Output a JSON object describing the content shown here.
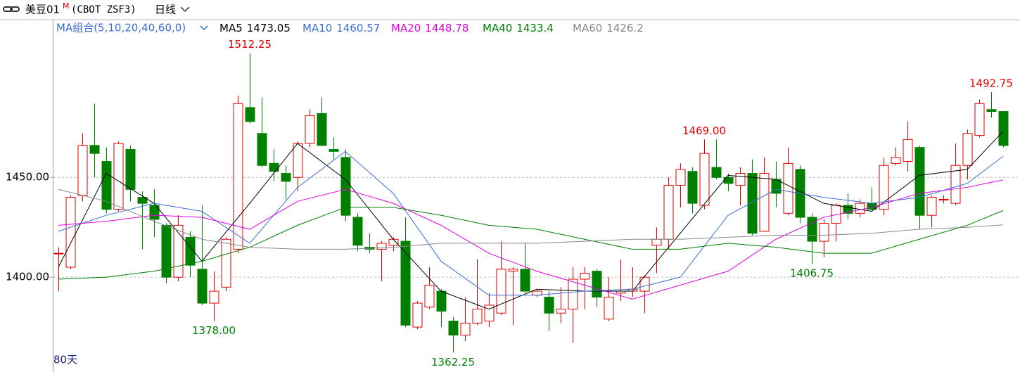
{
  "chart_data": {
    "type": "candlestick",
    "symbol": "美豆01",
    "symbol_flag": "M",
    "code": "(CBOT ZSF3)",
    "period": "日线",
    "ma_group": "MA组合(5,10,20,40,60,0)",
    "footer": "80天",
    "up_color": "#e00000",
    "down_color": "#008000",
    "ylim": [
      1352.5,
      1529
    ],
    "yticks": [
      {
        "value": 1400,
        "label": "1400.00"
      },
      {
        "value": 1450,
        "label": "1450.00"
      }
    ],
    "grid": true,
    "candles": {
      "open": [
        1412,
        1405,
        1441,
        1466,
        1458,
        1434,
        1464,
        1440,
        1436,
        1426,
        1400,
        1420,
        1404,
        1387,
        1395,
        1414,
        1485,
        1472,
        1457,
        1452,
        1450,
        1467,
        1482,
        1464,
        1460,
        1430,
        1415,
        1414,
        1416,
        1418,
        1375,
        1385,
        1393,
        1378,
        1371,
        1377,
        1378,
        1382,
        1403,
        1404,
        1391,
        1390,
        1382,
        1384,
        1399,
        1403,
        1379,
        1392,
        1393,
        1393,
        1416,
        1419,
        1446,
        1453,
        1436,
        1455,
        1450,
        1446,
        1452,
        1423,
        1449,
        1432,
        1454,
        1430,
        1418,
        1427,
        1436,
        1432,
        1437,
        1434,
        1457,
        1458,
        1465,
        1431,
        1439,
        1437,
        1456,
        1471,
        1484,
        1483
      ],
      "high": [
        1415,
        1441,
        1472,
        1487,
        1465,
        1468,
        1466,
        1443,
        1444,
        1427,
        1431,
        1423,
        1436,
        1403,
        1420,
        1491,
        1512.25,
        1490,
        1464,
        1456,
        1468,
        1484,
        1490,
        1470,
        1464,
        1432,
        1422,
        1418,
        1420,
        1430,
        1388,
        1405,
        1394,
        1380,
        1390,
        1409,
        1392,
        1418,
        1405,
        1417,
        1394,
        1393,
        1395,
        1405,
        1405,
        1404,
        1400,
        1409,
        1405,
        1401,
        1425,
        1450,
        1457,
        1455,
        1469,
        1469,
        1452,
        1455,
        1459,
        1460,
        1458,
        1465,
        1456,
        1432,
        1429,
        1437,
        1442,
        1439,
        1445,
        1460,
        1465,
        1478,
        1466,
        1441,
        1441,
        1467,
        1474,
        1489,
        1492.75,
        1483
      ],
      "low": [
        1393,
        1404,
        1438,
        1450,
        1432,
        1433,
        1438,
        1414,
        1420,
        1397,
        1398,
        1400,
        1386,
        1378,
        1393,
        1412,
        1477,
        1455,
        1448,
        1439,
        1443,
        1465,
        1466,
        1459,
        1428,
        1413,
        1412,
        1398,
        1413,
        1375,
        1374,
        1384,
        1375,
        1362.25,
        1368,
        1376,
        1375,
        1381,
        1376,
        1392,
        1390,
        1373,
        1377,
        1367,
        1384,
        1385,
        1378,
        1388,
        1390,
        1382,
        1402,
        1414,
        1435,
        1432,
        1434,
        1449,
        1443,
        1436,
        1421,
        1423,
        1435,
        1431,
        1427,
        1406.75,
        1410,
        1418,
        1429,
        1430,
        1433,
        1431,
        1456,
        1453,
        1424,
        1425,
        1437,
        1436,
        1449,
        1470,
        1480,
        1465
      ],
      "close": [
        1412,
        1440,
        1466,
        1462,
        1434,
        1467,
        1444,
        1437,
        1429,
        1400,
        1426,
        1406,
        1387,
        1393,
        1419,
        1487,
        1478,
        1456,
        1453,
        1448,
        1467,
        1481,
        1466,
        1463,
        1431,
        1416,
        1414,
        1417,
        1419,
        1376,
        1387,
        1396,
        1383,
        1371,
        1377,
        1384,
        1386,
        1404,
        1404,
        1393,
        1393,
        1382,
        1384,
        1399,
        1402,
        1390,
        1390,
        1393,
        1394,
        1400,
        1419,
        1446,
        1454,
        1437,
        1462,
        1450,
        1447,
        1452,
        1422,
        1452,
        1442,
        1457,
        1430,
        1418,
        1427,
        1436,
        1432,
        1437,
        1434,
        1456,
        1460,
        1469,
        1431,
        1440,
        1439,
        1456,
        1472,
        1487,
        1483,
        1466
      ]
    },
    "annotations": [
      1512.25,
      {
        "value": 1378,
        "label": "1378.00"
      },
      1362.25,
      {
        "value": 1469,
        "label": "1469.00"
      },
      1406.75,
      1492.75
    ],
    "ma_x": [
      0,
      4,
      8,
      12,
      16,
      20,
      24,
      28,
      32,
      36,
      40,
      44,
      48,
      52,
      56,
      60,
      64,
      68,
      72,
      76,
      79
    ],
    "ma": [
      {
        "name": "MA5",
        "color": "#000000",
        "last": 1473.05,
        "values": [
          1405,
          1452,
          1437,
          1408,
          1437,
          1467,
          1449,
          1419,
          1393,
          1384,
          1394,
          1393,
          1393,
          1422,
          1451,
          1449,
          1437,
          1433,
          1451,
          1454,
          1473.05
        ]
      },
      {
        "name": "MA10",
        "color": "#3a6fd8",
        "last": 1460.57,
        "values": [
          1423,
          1431,
          1437,
          1433,
          1417,
          1445,
          1463,
          1442,
          1408,
          1391,
          1391,
          1393,
          1394,
          1400,
          1431,
          1444,
          1440,
          1437,
          1440,
          1447,
          1460.57
        ]
      },
      {
        "name": "MA20",
        "color": "#e000e0",
        "last": 1448.78,
        "values": [
          1426,
          1428,
          1431,
          1430,
          1424,
          1438,
          1444,
          1437,
          1426,
          1412,
          1403,
          1396,
          1389,
          1396,
          1403,
          1419,
          1430,
          1435,
          1442,
          1445,
          1448.78
        ]
      },
      {
        "name": "MA40",
        "color": "#008000",
        "last": 1433.4,
        "values": [
          1399,
          1400,
          1403,
          1408,
          1415,
          1426,
          1435,
          1435,
          1431,
          1426,
          1424,
          1419,
          1414,
          1414,
          1417,
          1415,
          1412,
          1412,
          1419,
          1426,
          1433.4
        ]
      },
      {
        "name": "MA60",
        "color": "#888888",
        "last": 1426.2,
        "values": [
          1444,
          1438,
          1428,
          1419,
          1415,
          1414,
          1414,
          1415,
          1417,
          1417,
          1417,
          1418,
          1419,
          1419,
          1420,
          1421,
          1421,
          1422,
          1424,
          1425,
          1426.2
        ]
      }
    ]
  }
}
